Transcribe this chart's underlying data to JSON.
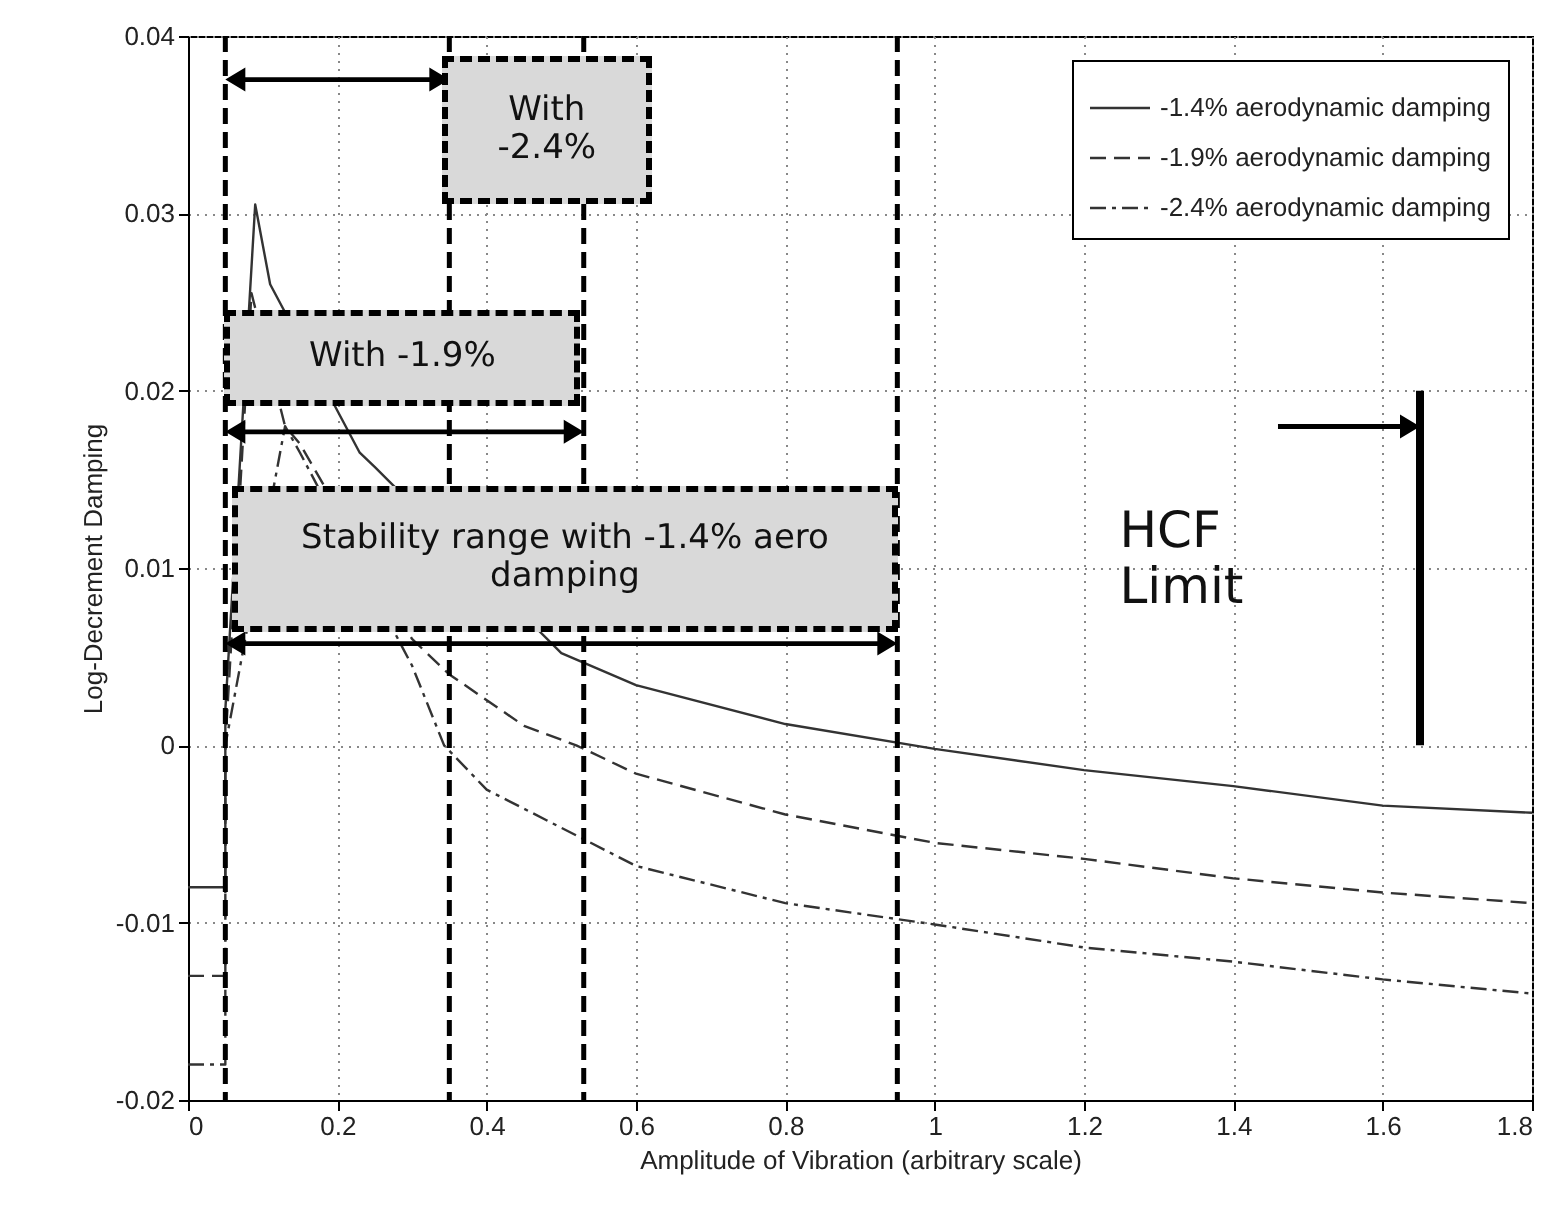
{
  "chart_data": {
    "type": "line",
    "xlabel": "Amplitude of Vibration (arbitrary scale)",
    "ylabel": "Log-Decrement Damping",
    "xlim": [
      0,
      1.8
    ],
    "xticks": [
      0,
      0.2,
      0.4,
      0.6,
      0.8,
      1,
      1.2,
      1.4,
      1.6,
      1.8
    ],
    "ylim": [
      -0.02,
      0.04
    ],
    "yticks": [
      -0.02,
      -0.01,
      0,
      0.01,
      0.02,
      0.03,
      0.04
    ],
    "grid": true,
    "legend": "top right",
    "series": [
      {
        "name": "-1.4% aerodynamic damping",
        "color": "#333333",
        "line_style": "solid",
        "x": [
          0,
          0.05,
          0.05,
          0.09,
          0.11,
          0.23,
          0.25,
          0.5,
          0.6,
          0.8,
          1,
          1.2,
          1.4,
          1.6,
          1.8
        ],
        "values": [
          -0.008,
          -0.008,
          0.002,
          0.0305,
          0.026,
          0.0165,
          0.0157,
          0.0052,
          0.0034,
          0.0012,
          -0.0002,
          -0.0014,
          -0.0023,
          -0.0034,
          -0.0038
        ]
      },
      {
        "name": "-1.9% aerodynamic damping",
        "color": "#333333",
        "line_style": "dashed",
        "x": [
          0,
          0.05,
          0.05,
          0.085,
          0.13,
          0.15,
          0.3,
          0.35,
          0.45,
          0.52,
          0.6,
          0.8,
          1,
          1.2,
          1.4,
          1.6,
          1.8
        ],
        "values": [
          -0.013,
          -0.013,
          0,
          0.0255,
          0.018,
          0.017,
          0.006,
          0.004,
          0.0011,
          0,
          -0.0016,
          -0.0039,
          -0.0055,
          -0.0064,
          -0.0075,
          -0.0083,
          -0.0089
        ]
      },
      {
        "name": "-2.4% aerodynamic damping",
        "color": "#333333",
        "line_style": "dashdot",
        "x": [
          0,
          0.05,
          0.05,
          0.13,
          0.15,
          0.3,
          0.343,
          0.4,
          0.6,
          0.8,
          1,
          1.2,
          1.4,
          1.6,
          1.8
        ],
        "values": [
          -0.018,
          -0.018,
          0,
          0.018,
          0.0165,
          0.0045,
          0,
          -0.0025,
          -0.0068,
          -0.0089,
          -0.0101,
          -0.0114,
          -0.0122,
          -0.0132,
          -0.014
        ]
      },
      {
        "color": "#000000",
        "line_style": "solid",
        "x": [
          1.65,
          1.65
        ],
        "values": [
          0,
          0.02
        ]
      }
    ],
    "ref_lines": [
      {
        "axis": "x",
        "value": 0.05,
        "line_style": "dashed",
        "color": "#000000"
      },
      {
        "axis": "x",
        "value": 0.35,
        "line_style": "dashed",
        "color": "#000000"
      },
      {
        "axis": "x",
        "value": 0.53,
        "line_style": "dashed",
        "color": "#000000"
      },
      {
        "axis": "x",
        "value": 0.95,
        "line_style": "dashed",
        "color": "#000000"
      }
    ],
    "annotations": [
      "With -2.4%",
      "With -1.9%",
      "Stability range with -1.4% aero damping",
      "HCF Limit"
    ]
  }
}
